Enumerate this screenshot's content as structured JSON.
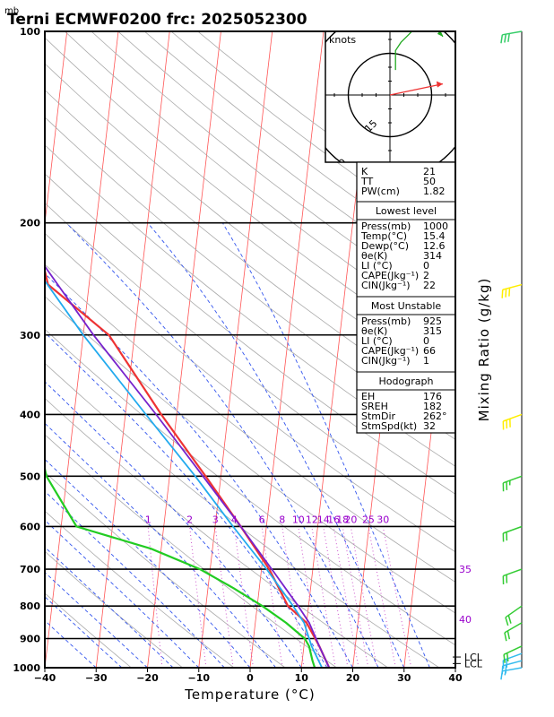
{
  "header": {
    "pressure_unit": "mb",
    "title": "Terni  ECMWF0200  frc: 2025052300"
  },
  "axes": {
    "x_label": "Temperature (°C)",
    "y2_label": "Mixing Ratio (g/kg)",
    "x_ticks": [
      "−40",
      "−30",
      "−20",
      "−10",
      "0",
      "10",
      "20",
      "30",
      "40"
    ],
    "y_ticks": [
      "100",
      "200",
      "300",
      "400",
      "500",
      "600",
      "700",
      "800",
      "900",
      "1000"
    ]
  },
  "mixing_ratio_labels": [
    "1",
    "2",
    "3",
    "4",
    "6",
    "8",
    "10",
    "12",
    "14",
    "16",
    "18",
    "20",
    "25",
    "30"
  ],
  "isotherm_side_labels": [
    "35",
    "40"
  ],
  "lcl_labels": [
    "LCL",
    "LCL"
  ],
  "hodograph": {
    "units_label": "knots",
    "ring_labels": [
      "15",
      "30",
      "45"
    ],
    "wind_path": [
      [
        2,
        9
      ],
      [
        2,
        16
      ],
      [
        4,
        19
      ],
      [
        6,
        21
      ],
      [
        8,
        23
      ],
      [
        10,
        24
      ],
      [
        13,
        24
      ],
      [
        15,
        25
      ],
      [
        17,
        24
      ],
      [
        18,
        23
      ],
      [
        19,
        21
      ]
    ],
    "storm_motion": [
      19,
      4
    ]
  },
  "indices_table": {
    "top": [
      {
        "label": "K",
        "value": "21"
      },
      {
        "label": "TT",
        "value": "50"
      },
      {
        "label": "PW(cm)",
        "value": "1.82"
      }
    ],
    "lowest_level": {
      "title": "Lowest level",
      "rows": [
        {
          "label": "Press(mb)",
          "value": "1000"
        },
        {
          "label": "Temp(°C)",
          "value": "15.4"
        },
        {
          "label": "Dewp(°C)",
          "value": "12.6"
        },
        {
          "label": "θe(K)",
          "value": "314"
        },
        {
          "label": "LI (°C)",
          "value": "0"
        },
        {
          "label": "CAPE(Jkg⁻¹)",
          "value": "2"
        },
        {
          "label": "CIN(Jkg⁻¹)",
          "value": "22"
        }
      ]
    },
    "most_unstable": {
      "title": "Most Unstable",
      "rows": [
        {
          "label": "Press(mb)",
          "value": "925"
        },
        {
          "label": "θe(K)",
          "value": "315"
        },
        {
          "label": "LI (°C)",
          "value": "0"
        },
        {
          "label": "CAPE(Jkg⁻¹)",
          "value": "66"
        },
        {
          "label": "CIN(Jkg⁻¹)",
          "value": "1"
        }
      ]
    },
    "hodograph_box": {
      "title": "Hodograph",
      "rows": [
        {
          "label": "EH",
          "value": "176"
        },
        {
          "label": "SREH",
          "value": "182"
        },
        {
          "label": "StmDir",
          "value": "262°"
        },
        {
          "label": "StmSpd(kt)",
          "value": "32"
        }
      ]
    }
  },
  "colors": {
    "temperature": "#ee3333",
    "dewpoint": "#22cc22",
    "parcel": "#7722cc",
    "virtual_parcel": "#22aaee",
    "isotherm": "#ff5555",
    "dry_adiabat": "#aaaaaa",
    "moist_adiabat": "#3355ee",
    "mixing_ratio_line": "#cc55cc",
    "mixing_ratio_label": "#9900cc",
    "wind_barb": "#33cc33",
    "wind_barb_upper": "#ffee00",
    "wind_barb_lower": "#33bbee"
  },
  "chart_data": {
    "type": "line",
    "x_unit": "°C",
    "y_unit": "mb",
    "xlim": [
      -40,
      40
    ],
    "ylim": [
      1000,
      100
    ],
    "y_scale": "log-p",
    "series": [
      {
        "key": "temperature",
        "points": [
          [
            15.4,
            1000
          ],
          [
            13,
            925
          ],
          [
            10,
            850
          ],
          [
            6,
            800
          ],
          [
            1.5,
            700
          ],
          [
            -5,
            600
          ],
          [
            -13,
            500
          ],
          [
            -23,
            400
          ],
          [
            -35,
            300
          ],
          [
            -48,
            250
          ],
          [
            -50,
            225
          ],
          [
            -52,
            200
          ],
          [
            -54,
            150
          ],
          [
            -55,
            100
          ]
        ]
      },
      {
        "key": "dewpoint",
        "points": [
          [
            12.6,
            1000
          ],
          [
            12,
            975
          ],
          [
            11,
            925
          ],
          [
            10,
            900
          ],
          [
            6,
            850
          ],
          [
            1,
            800
          ],
          [
            -5,
            750
          ],
          [
            -12,
            700
          ],
          [
            -22,
            650
          ],
          [
            -37,
            600
          ],
          [
            -44,
            500
          ],
          [
            -48,
            400
          ],
          [
            -56,
            300
          ],
          [
            -64,
            250
          ],
          [
            -73,
            200
          ],
          [
            -78,
            150
          ],
          [
            -84,
            100
          ]
        ]
      },
      {
        "key": "parcel",
        "points": [
          [
            15.4,
            1000
          ],
          [
            13,
            925
          ],
          [
            10.5,
            850
          ],
          [
            8,
            800
          ],
          [
            2,
            700
          ],
          [
            -5,
            600
          ],
          [
            -13.5,
            500
          ],
          [
            -24,
            400
          ],
          [
            -38,
            300
          ],
          [
            -56,
            200
          ],
          [
            -77,
            120
          ],
          [
            -80,
            110
          ]
        ]
      },
      {
        "key": "virtual_parcel",
        "points": [
          [
            14,
            1000
          ],
          [
            11.5,
            925
          ],
          [
            9.5,
            850
          ],
          [
            7,
            800
          ],
          [
            1,
            700
          ],
          [
            -6.5,
            600
          ],
          [
            -15,
            500
          ],
          [
            -26,
            400
          ],
          [
            -40,
            300
          ],
          [
            -58,
            200
          ],
          [
            -79,
            120
          ],
          [
            -82,
            110
          ]
        ]
      }
    ],
    "wind_profile": [
      {
        "p": 1000,
        "dir": 260,
        "spd": 15
      },
      {
        "p": 975,
        "dir": 255,
        "spd": 20
      },
      {
        "p": 950,
        "dir": 250,
        "spd": 20
      },
      {
        "p": 925,
        "dir": 245,
        "spd": 20
      },
      {
        "p": 850,
        "dir": 240,
        "spd": 20
      },
      {
        "p": 800,
        "dir": 235,
        "spd": 20
      },
      {
        "p": 700,
        "dir": 250,
        "spd": 20
      },
      {
        "p": 600,
        "dir": 250,
        "spd": 20
      },
      {
        "p": 500,
        "dir": 250,
        "spd": 25
      },
      {
        "p": 400,
        "dir": 250,
        "spd": 30
      },
      {
        "p": 250,
        "dir": 255,
        "spd": 30
      },
      {
        "p": 100,
        "dir": 260,
        "spd": 30
      }
    ]
  }
}
